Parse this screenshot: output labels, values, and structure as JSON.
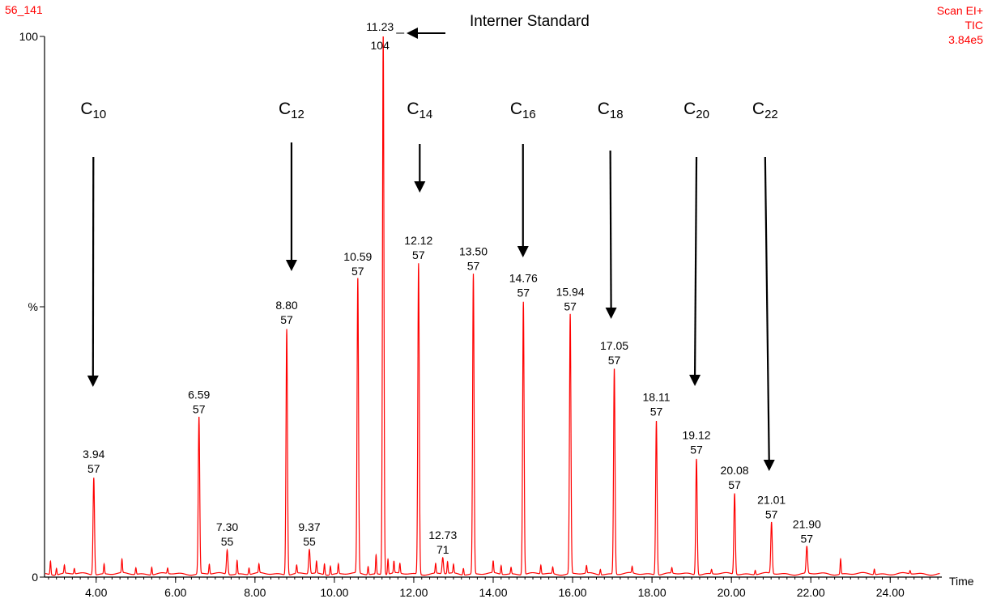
{
  "header": {
    "sample_id": "56_141",
    "scan_mode": "Scan EI+",
    "trace": "TIC",
    "intensity": "3.84e5"
  },
  "colors": {
    "trace": "#ff0000",
    "axis": "#000000",
    "text": "#000000"
  },
  "chart_data": {
    "type": "line",
    "xlabel": "Time",
    "ylabel": "%",
    "xlim": [
      2.7,
      25.3
    ],
    "ylim": [
      0,
      100
    ],
    "x_ticks": [
      "4.00",
      "6.00",
      "8.00",
      "10.00",
      "12.00",
      "14.00",
      "16.00",
      "18.00",
      "20.00",
      "22.00",
      "24.00"
    ],
    "y_ticks": [
      "0",
      "%",
      "100"
    ],
    "grid": false,
    "peaks": [
      {
        "rt": 3.94,
        "height": 18,
        "label_rt": "3.94",
        "label_mz": "57"
      },
      {
        "rt": 6.59,
        "height": 29,
        "label_rt": "6.59",
        "label_mz": "57"
      },
      {
        "rt": 7.3,
        "height": 4.5,
        "label_rt": "7.30",
        "label_mz": "55"
      },
      {
        "rt": 8.8,
        "height": 45.5,
        "label_rt": "8.80",
        "label_mz": "57"
      },
      {
        "rt": 9.37,
        "height": 4.5,
        "label_rt": "9.37",
        "label_mz": "55"
      },
      {
        "rt": 10.59,
        "height": 54.5,
        "label_rt": "10.59",
        "label_mz": "57"
      },
      {
        "rt": 11.23,
        "height": 100,
        "label_rt": "11.23",
        "label_mz": "104"
      },
      {
        "rt": 12.12,
        "height": 57.5,
        "label_rt": "12.12",
        "label_mz": "57"
      },
      {
        "rt": 12.73,
        "height": 3,
        "label_rt": "12.73",
        "label_mz": "71"
      },
      {
        "rt": 13.5,
        "height": 55.5,
        "label_rt": "13.50",
        "label_mz": "57"
      },
      {
        "rt": 14.76,
        "height": 50.5,
        "label_rt": "14.76",
        "label_mz": "57"
      },
      {
        "rt": 15.94,
        "height": 48,
        "label_rt": "15.94",
        "label_mz": "57"
      },
      {
        "rt": 17.05,
        "height": 38,
        "label_rt": "17.05",
        "label_mz": "57"
      },
      {
        "rt": 18.11,
        "height": 28.5,
        "label_rt": "18.11",
        "label_mz": "57"
      },
      {
        "rt": 19.12,
        "height": 21.5,
        "label_rt": "19.12",
        "label_mz": "57"
      },
      {
        "rt": 20.08,
        "height": 15,
        "label_rt": "20.08",
        "label_mz": "57"
      },
      {
        "rt": 21.01,
        "height": 9.5,
        "label_rt": "21.01",
        "label_mz": "57"
      },
      {
        "rt": 21.9,
        "height": 5,
        "label_rt": "21.90",
        "label_mz": "57"
      }
    ],
    "minor_peaks": [
      {
        "rt": 2.85,
        "height": 2.5
      },
      {
        "rt": 3.0,
        "height": 1.2
      },
      {
        "rt": 3.2,
        "height": 1.5
      },
      {
        "rt": 3.45,
        "height": 1
      },
      {
        "rt": 4.2,
        "height": 1.8
      },
      {
        "rt": 4.65,
        "height": 2.5
      },
      {
        "rt": 5.0,
        "height": 1.2
      },
      {
        "rt": 5.4,
        "height": 1.4
      },
      {
        "rt": 5.8,
        "height": 1
      },
      {
        "rt": 6.85,
        "height": 1.8
      },
      {
        "rt": 7.55,
        "height": 2.5
      },
      {
        "rt": 7.85,
        "height": 1.2
      },
      {
        "rt": 8.1,
        "height": 1.6
      },
      {
        "rt": 9.05,
        "height": 1.5
      },
      {
        "rt": 9.55,
        "height": 2.2
      },
      {
        "rt": 9.75,
        "height": 2
      },
      {
        "rt": 9.9,
        "height": 1.6
      },
      {
        "rt": 10.1,
        "height": 1.8
      },
      {
        "rt": 10.85,
        "height": 1.5
      },
      {
        "rt": 11.05,
        "height": 3.5
      },
      {
        "rt": 11.35,
        "height": 2.8
      },
      {
        "rt": 11.5,
        "height": 2.2
      },
      {
        "rt": 11.65,
        "height": 1.8
      },
      {
        "rt": 12.55,
        "height": 1.8
      },
      {
        "rt": 12.85,
        "height": 2.2
      },
      {
        "rt": 13.0,
        "height": 1.6
      },
      {
        "rt": 13.25,
        "height": 1.2
      },
      {
        "rt": 14.0,
        "height": 2.2
      },
      {
        "rt": 14.2,
        "height": 1.6
      },
      {
        "rt": 14.45,
        "height": 1.2
      },
      {
        "rt": 15.2,
        "height": 1.6
      },
      {
        "rt": 15.5,
        "height": 1.2
      },
      {
        "rt": 16.35,
        "height": 1.4
      },
      {
        "rt": 16.7,
        "height": 1
      },
      {
        "rt": 17.5,
        "height": 1.2
      },
      {
        "rt": 18.5,
        "height": 1
      },
      {
        "rt": 19.5,
        "height": 0.8
      },
      {
        "rt": 20.6,
        "height": 0.8
      },
      {
        "rt": 22.75,
        "height": 2.8
      },
      {
        "rt": 23.6,
        "height": 1
      },
      {
        "rt": 24.5,
        "height": 0.6
      }
    ],
    "annotations": {
      "internal_standard": "Interner Standard",
      "carbon_markers": [
        {
          "prefix": "C",
          "sub": "10",
          "rt": 3.92,
          "label_rt": 3.93
        },
        {
          "prefix": "C",
          "sub": "12",
          "rt": 8.92,
          "label_rt": 8.92
        },
        {
          "prefix": "C",
          "sub": "14",
          "rt": 12.15,
          "label_rt": 12.15
        },
        {
          "prefix": "C",
          "sub": "16",
          "rt": 14.75,
          "label_rt": 14.75
        },
        {
          "prefix": "C",
          "sub": "18",
          "rt": 16.97,
          "label_rt": 16.95
        },
        {
          "prefix": "C",
          "sub": "20",
          "rt": 19.08,
          "label_rt": 19.12
        },
        {
          "prefix": "C",
          "sub": "22",
          "rt": 20.95,
          "label_rt": 20.85
        }
      ]
    }
  }
}
